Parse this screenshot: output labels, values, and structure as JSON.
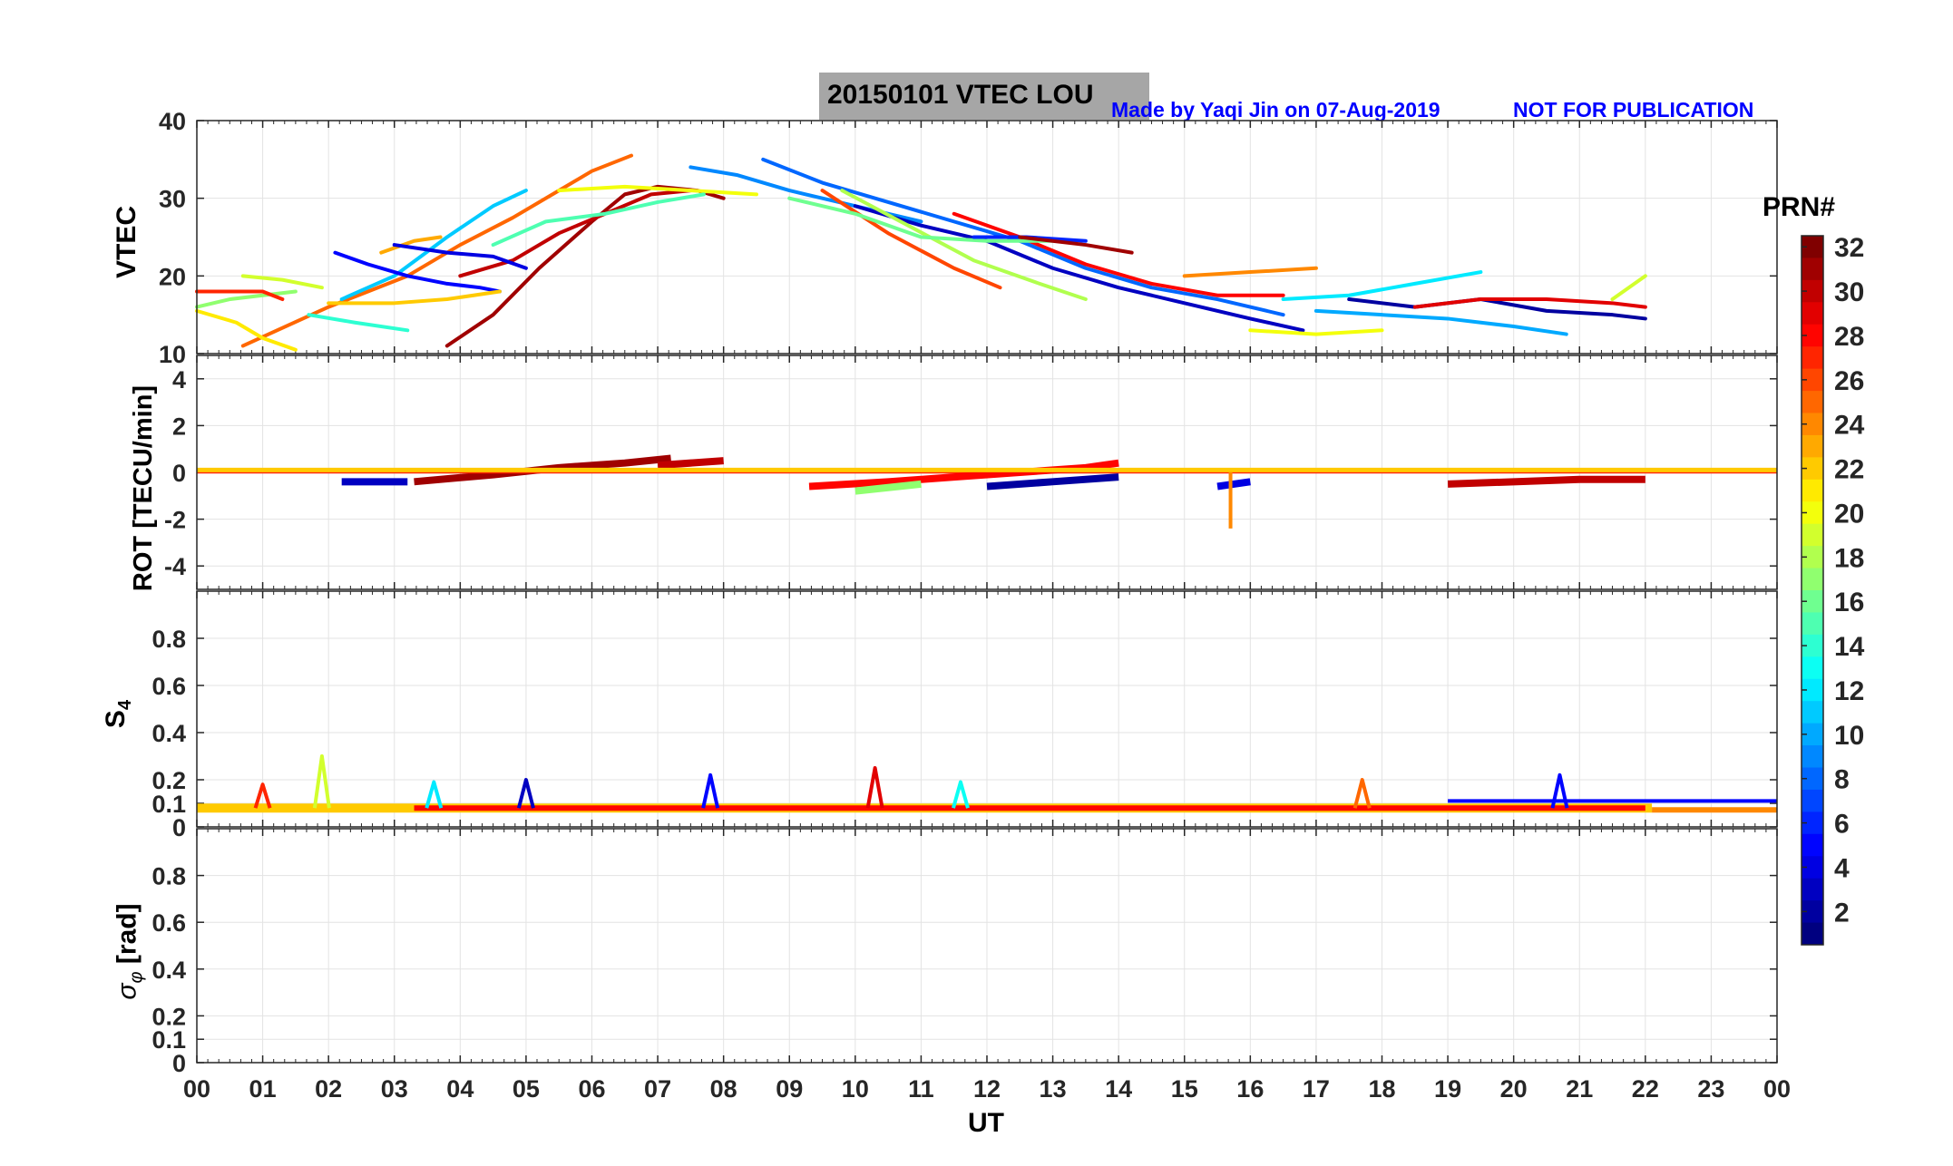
{
  "header": {
    "title": "20150101    VTEC  LOU",
    "credit": "Made by Yaqi Jin on 07-Aug-2019",
    "notice": "NOT FOR PUBLICATION"
  },
  "colorbar": {
    "label": "PRN#",
    "ticks": [
      "2",
      "4",
      "6",
      "8",
      "10",
      "12",
      "14",
      "16",
      "18",
      "20",
      "22",
      "24",
      "26",
      "28",
      "30",
      "32"
    ],
    "min": 1,
    "max": 32
  },
  "chart_data": [
    {
      "type": "line",
      "panel": "vtec",
      "ylabel": "VTEC",
      "ylim": [
        10,
        40
      ],
      "yticks": [
        "10",
        "20",
        "30",
        "40"
      ],
      "xlabel": "UT",
      "xticks": [
        "00",
        "01",
        "02",
        "03",
        "04",
        "05",
        "06",
        "07",
        "08",
        "09",
        "10",
        "11",
        "12",
        "13",
        "14",
        "15",
        "16",
        "17",
        "18",
        "19",
        "20",
        "21",
        "22",
        "23",
        "00"
      ],
      "xlim": [
        0,
        24
      ],
      "series": [
        {
          "prn": 31,
          "x": [
            3.8,
            4.5,
            5.2,
            6.0,
            6.5,
            7.0,
            7.6,
            8.0
          ],
          "y": [
            11,
            15,
            21,
            27,
            30.5,
            31.5,
            31,
            30
          ]
        },
        {
          "prn": 30,
          "x": [
            4.0,
            4.8,
            5.5,
            6.2,
            6.9,
            7.5
          ],
          "y": [
            20,
            22,
            25.5,
            28,
            30.5,
            31
          ]
        },
        {
          "prn": 25,
          "x": [
            0.7,
            2.0,
            3.2,
            4.0,
            4.8,
            5.5,
            6.0,
            6.6
          ],
          "y": [
            11,
            16,
            20,
            24,
            27.5,
            31,
            33.5,
            35.5
          ]
        },
        {
          "prn": 11,
          "x": [
            2.2,
            3.0,
            3.8,
            4.5,
            5.0
          ],
          "y": [
            17,
            20,
            25,
            29,
            31
          ]
        },
        {
          "prn": 20,
          "x": [
            5.5,
            6.5,
            7.5,
            8.5
          ],
          "y": [
            31,
            31.5,
            31,
            30.5
          ]
        },
        {
          "prn": 15,
          "x": [
            4.5,
            5.3,
            6.2,
            7.0,
            7.7
          ],
          "y": [
            24,
            27,
            28,
            29.5,
            30.5
          ]
        },
        {
          "prn": 9,
          "x": [
            7.5,
            8.2,
            9.0,
            10.0,
            11.0
          ],
          "y": [
            34,
            33,
            31,
            29,
            27
          ]
        },
        {
          "prn": 8,
          "x": [
            8.6,
            9.5,
            10.5,
            11.5,
            12.5,
            13.5,
            14.5,
            15.5,
            16.5
          ],
          "y": [
            35,
            32,
            29.5,
            27,
            24.5,
            21,
            18.5,
            17,
            15
          ]
        },
        {
          "prn": 3,
          "x": [
            10.0,
            11.0,
            12.0,
            13.0,
            14.0,
            15.0,
            16.0,
            16.8
          ],
          "y": [
            29,
            26.5,
            24.5,
            21,
            18.5,
            16.5,
            14.5,
            13
          ]
        },
        {
          "prn": 26,
          "x": [
            9.5,
            10.5,
            11.5,
            12.2
          ],
          "y": [
            31,
            25.5,
            21,
            18.5
          ]
        },
        {
          "prn": 28,
          "x": [
            11.5,
            12.5,
            13.5,
            14.5,
            15.5,
            16.5
          ],
          "y": [
            28,
            25,
            21.5,
            19,
            17.5,
            17.5
          ]
        },
        {
          "prn": 18,
          "x": [
            9.8,
            10.8,
            11.8,
            12.8,
            13.5
          ],
          "y": [
            31,
            26.5,
            22,
            19,
            17
          ]
        },
        {
          "prn": 16,
          "x": [
            9.0,
            10.0,
            11.0,
            12.0,
            13.0
          ],
          "y": [
            30,
            28,
            25,
            24.5,
            24.5
          ]
        },
        {
          "prn": 24,
          "x": [
            15.0,
            16.0,
            17.0
          ],
          "y": [
            20,
            20.5,
            21
          ]
        },
        {
          "prn": 12,
          "x": [
            16.5,
            17.5,
            18.5,
            19.5
          ],
          "y": [
            17,
            17.5,
            19,
            20.5
          ]
        },
        {
          "prn": 2,
          "x": [
            17.5,
            18.5,
            19.5,
            20.5,
            21.5,
            22.0
          ],
          "y": [
            17,
            16,
            17,
            15.5,
            15,
            14.5
          ]
        },
        {
          "prn": 10,
          "x": [
            17.0,
            18.0,
            19.0,
            20.0,
            20.8
          ],
          "y": [
            15.5,
            15,
            14.5,
            13.5,
            12.5
          ]
        },
        {
          "prn": 29,
          "x": [
            18.5,
            19.5,
            20.5,
            21.5,
            22.0
          ],
          "y": [
            16,
            17,
            17,
            16.5,
            16
          ]
        },
        {
          "prn": 19,
          "x": [
            21.5,
            22.0
          ],
          "y": [
            17,
            20
          ]
        },
        {
          "prn": 20,
          "x": [
            16.0,
            17.0,
            18.0
          ],
          "y": [
            13,
            12.5,
            13
          ]
        },
        {
          "prn": 17,
          "x": [
            0.0,
            0.5,
            1.0,
            1.5
          ],
          "y": [
            16,
            17,
            17.5,
            18
          ]
        },
        {
          "prn": 19,
          "x": [
            0.7,
            1.3,
            1.9
          ],
          "y": [
            20,
            19.5,
            18.5
          ]
        },
        {
          "prn": 21,
          "x": [
            0.0,
            0.6,
            1.0,
            1.5
          ],
          "y": [
            15.5,
            14,
            12,
            10.5
          ]
        },
        {
          "prn": 27,
          "x": [
            0.0,
            0.5,
            1.0,
            1.3
          ],
          "y": [
            18,
            18,
            18,
            17
          ]
        },
        {
          "prn": 5,
          "x": [
            2.1,
            2.6,
            3.2,
            3.8,
            4.3,
            4.6
          ],
          "y": [
            23,
            21.5,
            20,
            19,
            18.5,
            18
          ]
        },
        {
          "prn": 14,
          "x": [
            1.7,
            2.4,
            3.2
          ],
          "y": [
            15,
            14,
            13
          ]
        },
        {
          "prn": 22,
          "x": [
            2.0,
            3.0,
            3.8,
            4.6
          ],
          "y": [
            16.5,
            16.5,
            17,
            18
          ]
        },
        {
          "prn": 23,
          "x": [
            2.8,
            3.3,
            3.7
          ],
          "y": [
            23,
            24.5,
            25
          ]
        },
        {
          "prn": 4,
          "x": [
            3.0,
            3.8,
            4.5,
            5.0
          ],
          "y": [
            24,
            23,
            22.5,
            21
          ]
        },
        {
          "prn": 6,
          "x": [
            11.8,
            12.6,
            13.5
          ],
          "y": [
            25,
            25,
            24.5
          ]
        },
        {
          "prn": 31,
          "x": [
            12.5,
            13.5,
            14.2
          ],
          "y": [
            25,
            24,
            23
          ]
        }
      ]
    },
    {
      "type": "scatter",
      "panel": "rot",
      "ylabel": "ROT [TECU/min]",
      "ylim": [
        -5,
        5
      ],
      "yticks": [
        "-4",
        "-2",
        "0",
        "2",
        "4"
      ],
      "xlim": [
        0,
        24
      ],
      "spike": {
        "x": 15.7,
        "y": -2.4,
        "prn": 24
      },
      "series": [
        {
          "prn": 31,
          "x": [
            3.3,
            4.5,
            5.5,
            6.5,
            7.2
          ],
          "y": [
            -0.4,
            -0.1,
            0.2,
            0.4,
            0.6
          ]
        },
        {
          "prn": 30,
          "x": [
            7.0,
            8.0
          ],
          "y": [
            0.3,
            0.5
          ]
        },
        {
          "prn": 27,
          "x": [
            0.0,
            24.0
          ],
          "y": [
            0.05,
            0.05
          ]
        },
        {
          "prn": 3,
          "x": [
            2.2,
            3.2
          ],
          "y": [
            -0.4,
            -0.4
          ]
        },
        {
          "prn": 28,
          "x": [
            9.3,
            10.5,
            11.5,
            12.5,
            13.5,
            14.0
          ],
          "y": [
            -0.6,
            -0.4,
            -0.2,
            0.0,
            0.2,
            0.4
          ]
        },
        {
          "prn": 30,
          "x": [
            19.0,
            20.0,
            21.0,
            22.0
          ],
          "y": [
            -0.5,
            -0.4,
            -0.3,
            -0.3
          ]
        },
        {
          "prn": 2,
          "x": [
            12.0,
            13.0,
            14.0
          ],
          "y": [
            -0.6,
            -0.4,
            -0.2
          ]
        },
        {
          "prn": 17,
          "x": [
            10.0,
            11.0
          ],
          "y": [
            -0.8,
            -0.5
          ]
        },
        {
          "prn": 4,
          "x": [
            15.5,
            16.0
          ],
          "y": [
            -0.6,
            -0.4
          ]
        },
        {
          "prn": 22,
          "x": [
            0.0,
            24.0
          ],
          "y": [
            0.1,
            0.1
          ]
        }
      ]
    },
    {
      "type": "scatter",
      "panel": "s4",
      "ylabel": "S4",
      "ylim": [
        0,
        1
      ],
      "yticks": [
        "0",
        "0.1",
        "0.2",
        "0.4",
        "0.6",
        "0.8"
      ],
      "xlim": [
        0,
        24
      ],
      "baseline": 0.08,
      "peaks": [
        {
          "x": 1.9,
          "y": 0.3,
          "prn": 19
        },
        {
          "x": 10.3,
          "y": 0.25,
          "prn": 29
        },
        {
          "x": 7.8,
          "y": 0.22,
          "prn": 5
        },
        {
          "x": 20.7,
          "y": 0.22,
          "prn": 5
        },
        {
          "x": 5.0,
          "y": 0.2,
          "prn": 3
        },
        {
          "x": 1.0,
          "y": 0.18,
          "prn": 27
        },
        {
          "x": 17.7,
          "y": 0.2,
          "prn": 25
        },
        {
          "x": 3.6,
          "y": 0.19,
          "prn": 12
        },
        {
          "x": 11.6,
          "y": 0.19,
          "prn": 13
        }
      ],
      "flat_line": {
        "x": [
          19.0,
          24.0
        ],
        "y": 0.11,
        "prn": 5
      }
    },
    {
      "type": "scatter",
      "panel": "sigma_phi",
      "ylabel": "σ φ [rad]",
      "ylim": [
        0,
        1
      ],
      "yticks": [
        "0",
        "0.1",
        "0.2",
        "0.4",
        "0.6",
        "0.8"
      ],
      "xlim": [
        0,
        24
      ],
      "series": []
    }
  ]
}
